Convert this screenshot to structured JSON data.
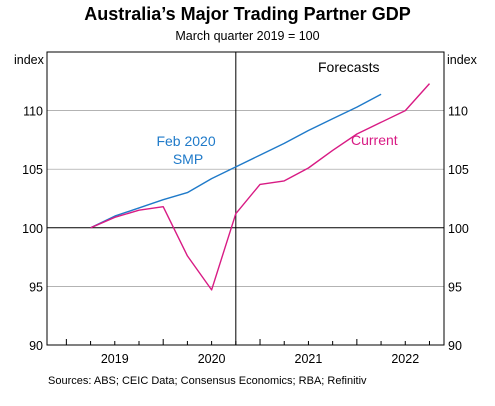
{
  "chart_data": {
    "type": "line",
    "title": "Australia’s Major Trading Partner GDP",
    "subtitle": "March quarter 2019 = 100",
    "ylabel_left": "index",
    "ylabel_right": "index",
    "ylim": [
      90,
      115
    ],
    "yticks": [
      90,
      95,
      100,
      105,
      110
    ],
    "x_categories": [
      "2019",
      "2020",
      "2021",
      "2022"
    ],
    "grid": "horizontal",
    "forecast_label": "Forecasts",
    "forecast_start": 2020.75,
    "series": [
      {
        "name": "Feb 2020 SMP",
        "label_lines": [
          "Feb 2020",
          "SMP"
        ],
        "color": "#1f7ac9",
        "x": [
          2019.25,
          2019.5,
          2019.75,
          2020.0,
          2020.25,
          2020.5,
          2020.75,
          2021.0,
          2021.25,
          2021.5,
          2021.75,
          2022.0,
          2022.25
        ],
        "y": [
          100.0,
          101.0,
          101.7,
          102.4,
          103.0,
          104.2,
          105.2,
          106.2,
          107.2,
          108.3,
          109.3,
          110.3,
          111.4
        ]
      },
      {
        "name": "Current",
        "label_lines": [
          "Current"
        ],
        "color": "#d81b84",
        "x": [
          2019.25,
          2019.5,
          2019.75,
          2020.0,
          2020.25,
          2020.5,
          2020.75,
          2021.0,
          2021.25,
          2021.5,
          2021.75,
          2022.0,
          2022.25,
          2022.5
        ],
        "y": [
          100.0,
          100.9,
          101.5,
          101.8,
          97.6,
          94.7,
          101.2,
          103.7,
          104.0,
          105.1,
          106.6,
          108.0,
          109.0,
          110.0
        ]
      }
    ],
    "current_end_y": 112.3,
    "current_end_x": 2022.75
  },
  "footer": {
    "source": "Sources: ABS; CEIC Data; Consensus Economics; RBA; Refinitiv"
  }
}
